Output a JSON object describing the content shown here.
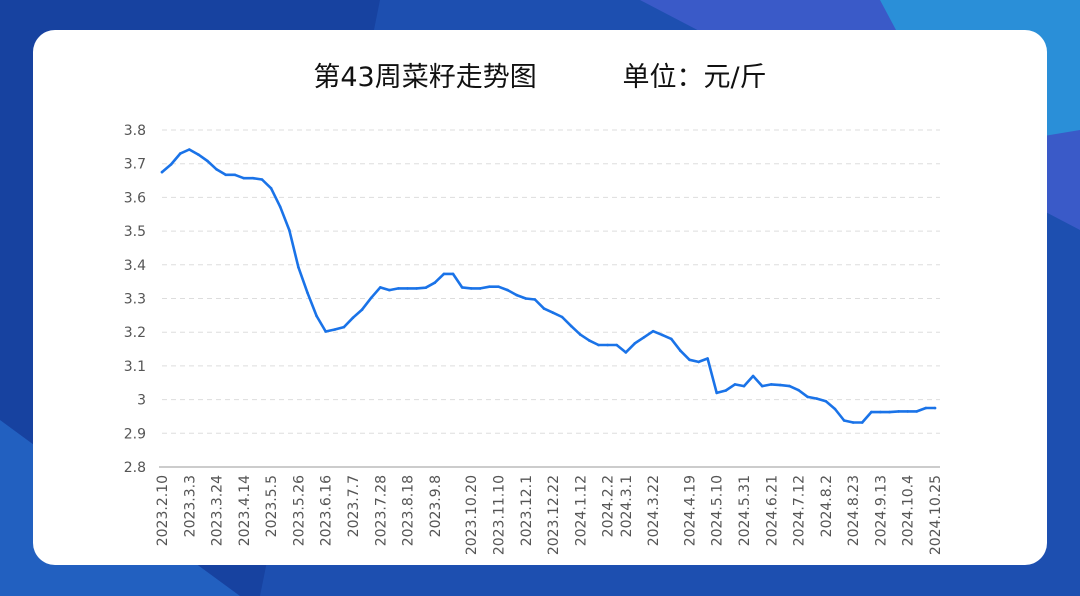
{
  "colors": {
    "background": "#1d4fb0",
    "card": "#ffffff",
    "line": "#1a73e8",
    "grid": "#dddddd",
    "axis": "#999999",
    "tick_text": "#555555"
  },
  "chart_data": {
    "type": "line",
    "title": "第43周菜籽走势图",
    "subtitle": "单位：元/斤",
    "xlabel": "",
    "ylabel": "",
    "ylim": [
      2.8,
      3.8
    ],
    "yticks": [
      2.8,
      2.9,
      3,
      3.1,
      3.2,
      3.3,
      3.4,
      3.5,
      3.6,
      3.7,
      3.8
    ],
    "grid": true,
    "x": [
      "2023.2.10",
      "2023.2.17",
      "2023.2.24",
      "2023.3.3",
      "2023.3.10",
      "2023.3.17",
      "2023.3.24",
      "2023.3.31",
      "2023.4.7",
      "2023.4.14",
      "2023.4.21",
      "2023.4.28",
      "2023.5.5",
      "2023.5.12",
      "2023.5.19",
      "2023.5.26",
      "2023.6.2",
      "2023.6.9",
      "2023.6.16",
      "2023.6.23",
      "2023.6.30",
      "2023.7.7",
      "2023.7.14",
      "2023.7.21",
      "2023.7.28",
      "2023.8.4",
      "2023.8.11",
      "2023.8.18",
      "2023.8.25",
      "2023.9.1",
      "2023.9.8",
      "2023.9.15",
      "2023.9.22",
      "2023.10.13",
      "2023.10.20",
      "2023.10.27",
      "2023.11.3",
      "2023.11.10",
      "2023.11.17",
      "2023.11.24",
      "2023.12.1",
      "2023.12.8",
      "2023.12.15",
      "2023.12.22",
      "2023.12.29",
      "2024.1.5",
      "2024.1.12",
      "2024.1.19",
      "2024.1.26",
      "2024.2.2",
      "2024.2.23",
      "2024.3.1",
      "2024.3.8",
      "2024.3.15",
      "2024.3.22",
      "2024.3.29",
      "2024.4.5",
      "2024.4.12",
      "2024.4.19",
      "2024.4.26",
      "2024.5.3",
      "2024.5.10",
      "2024.5.17",
      "2024.5.24",
      "2024.5.31",
      "2024.6.7",
      "2024.6.14",
      "2024.6.21",
      "2024.6.28",
      "2024.7.5",
      "2024.7.12",
      "2024.7.19",
      "2024.7.26",
      "2024.8.2",
      "2024.8.9",
      "2024.8.16",
      "2024.8.23",
      "2024.8.30",
      "2024.9.6",
      "2024.9.13",
      "2024.9.20",
      "2024.9.27",
      "2024.10.4",
      "2024.10.11",
      "2024.10.18",
      "2024.10.25"
    ],
    "tick_labels": [
      "2023.2.10",
      "2023.3.3",
      "2023.3.24",
      "2023.4.14",
      "2023.5.5",
      "2023.5.26",
      "2023.6.16",
      "2023.7.7",
      "2023.7.28",
      "2023.8.18",
      "2023.9.8",
      "2023.10.20",
      "2023.11.10",
      "2023.12.1",
      "2023.12.22",
      "2024.1.12",
      "2024.2.2",
      "2024.3.1",
      "2024.3.22",
      "2024.4.19",
      "2024.5.10",
      "2024.5.31",
      "2024.6.21",
      "2024.7.12",
      "2024.8.2",
      "2024.8.23",
      "2024.9.13",
      "2024.10.4",
      "2024.10.25"
    ],
    "series": [
      {
        "values": [
          3.675,
          3.698,
          3.73,
          3.742,
          3.727,
          3.708,
          3.683,
          3.667,
          3.667,
          3.657,
          3.657,
          3.653,
          3.627,
          3.572,
          3.503,
          3.393,
          3.317,
          3.248,
          3.202,
          3.208,
          3.215,
          3.243,
          3.267,
          3.302,
          3.333,
          3.325,
          3.33,
          3.33,
          3.33,
          3.332,
          3.347,
          3.373,
          3.373,
          3.333,
          3.33,
          3.33,
          3.335,
          3.335,
          3.325,
          3.31,
          3.3,
          3.297,
          3.27,
          3.258,
          3.245,
          3.218,
          3.193,
          3.175,
          3.162,
          3.162,
          3.162,
          3.14,
          3.167,
          3.185,
          3.203,
          3.192,
          3.18,
          3.145,
          3.118,
          3.112,
          3.122,
          3.02,
          3.027,
          3.045,
          3.04,
          3.07,
          3.04,
          3.045,
          3.043,
          3.04,
          3.028,
          3.008,
          3.003,
          2.995,
          2.972,
          2.938,
          2.932,
          2.932,
          2.963,
          2.963,
          2.963,
          2.965,
          2.965,
          2.965,
          2.975,
          2.975
        ]
      }
    ]
  }
}
